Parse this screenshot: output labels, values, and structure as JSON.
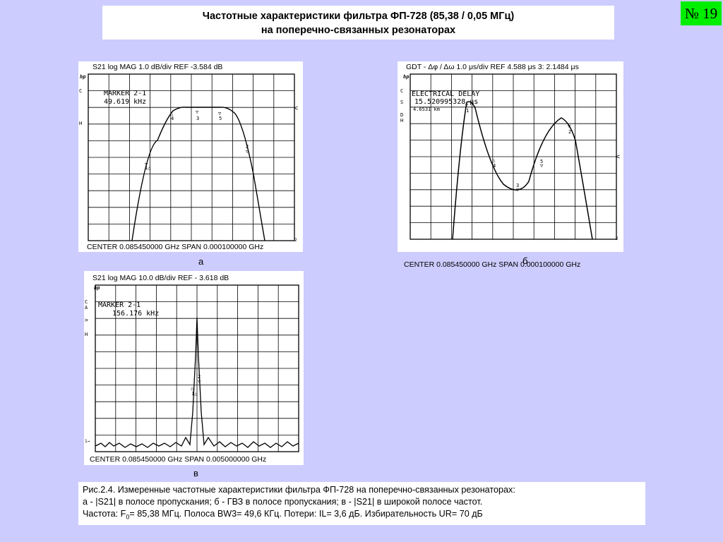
{
  "header": {
    "title_line1": "Частотные характеристики фильтра ФП-728 (85,38 / 0,05 МГц)",
    "title_line2": "на поперечно-связанных резонаторах",
    "slide_number": "№ 19"
  },
  "panel_a": {
    "top_label": "S21 log  MAG   1.0 dB/div   REF -3.584 dB",
    "bottom_label": "CENTER  0.085450000  GHz      SPAN  0.000100000  GHz",
    "marker_line1": "MARKER 2-1",
    "marker_line2": "49.619 kHz",
    "letter": "а"
  },
  "panel_b": {
    "top_label": "GDT - Δφ / Δω   1.0 μs/div   REF   4.588 μs  3: 2.1484 μs",
    "bottom_label": "CENTER  0.085450000  GHz        SPAN    0.000100000 GHz",
    "marker_line1": "ELECTRICAL DELAY",
    "marker_line2": "15.520995328 μs",
    "marker_line3": "4.6531 km",
    "letter": "б"
  },
  "panel_v": {
    "top_label": "S21 log  MAG   10.0 dB/div   REF - 3.618 dB",
    "bottom_label": "CENTER   0.085450000  GHz     SPAN   0.005000000  GHz",
    "marker_line1": "MARKER 2-1",
    "marker_line2": "156.176 kHz",
    "letter": "в"
  },
  "caption": {
    "line1": "Рис.2.4. Измеренные частотные характеристики фильтра ФП-728 на поперечно-связанных резонаторах:",
    "line2": "а - |S21| в полосе пропускания; б - ГВЗ в полосе пропускания; в - |S21| в широкой полосе частот.",
    "line3_a": "Частота: F",
    "line3_sub": "0",
    "line3_b": "= 85,38 МГц. Полоса BW3= 49,6 КГц. Потери: IL= 3,6 дБ. Избирательность UR= 70 дБ"
  }
}
